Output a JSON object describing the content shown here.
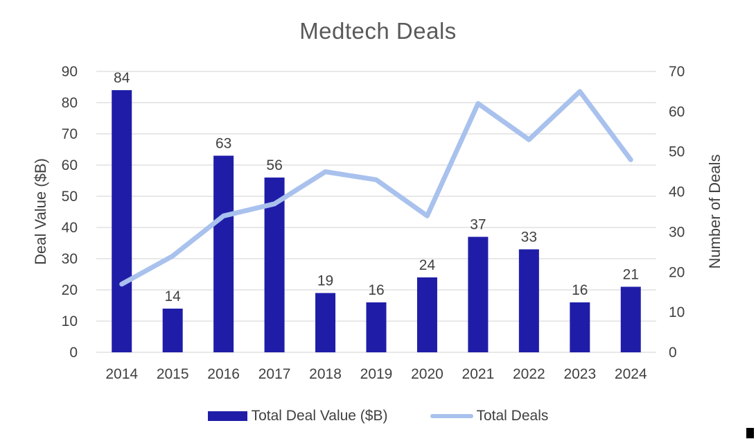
{
  "title": "Medtech Deals",
  "left_axis": {
    "label": "Deal Value ($B)",
    "ticks": [
      90,
      80,
      70,
      60,
      50,
      40,
      30,
      20,
      10,
      0
    ]
  },
  "right_axis": {
    "label": "Number of Deals",
    "ticks": [
      70,
      60,
      50,
      40,
      30,
      20,
      10,
      0
    ]
  },
  "legend": {
    "items": [
      {
        "label": "Total Deal Value ($B)",
        "swatch": "bar",
        "color": "#1F1DA8"
      },
      {
        "label": "Total Deals",
        "swatch": "line",
        "color": "#A9C1ED"
      }
    ]
  },
  "colors": {
    "bar": "#1F1DA8",
    "line": "#A9C1ED",
    "grid": "#D9D9D9",
    "title": "#595959",
    "text": "#404040"
  },
  "chart_data": {
    "type": "bar",
    "subtype": "combo-bar-line",
    "title": "Medtech Deals",
    "categories": [
      "2014",
      "2015",
      "2016",
      "2017",
      "2018",
      "2019",
      "2020",
      "2021",
      "2022",
      "2023",
      "2024"
    ],
    "series": [
      {
        "name": "Total Deal Value ($B)",
        "type": "bar",
        "axis": "left",
        "color": "#1F1DA8",
        "values": [
          84,
          14,
          63,
          56,
          19,
          16,
          24,
          37,
          33,
          16,
          21
        ],
        "data_labels": [
          "84",
          "14",
          "63",
          "56",
          "19",
          "16",
          "24",
          "37",
          "33",
          "16",
          "21"
        ]
      },
      {
        "name": "Total Deals",
        "type": "line",
        "axis": "right",
        "color": "#A9C1ED",
        "values": [
          17,
          24,
          34,
          37,
          45,
          43,
          34,
          62,
          53,
          65,
          48
        ]
      }
    ],
    "xlabel": "",
    "left_ylabel": "Deal Value ($B)",
    "right_ylabel": "Number of Deals",
    "left_ylim": [
      0,
      90
    ],
    "right_ylim": [
      0,
      70
    ],
    "grid": true,
    "legend_position": "bottom"
  }
}
